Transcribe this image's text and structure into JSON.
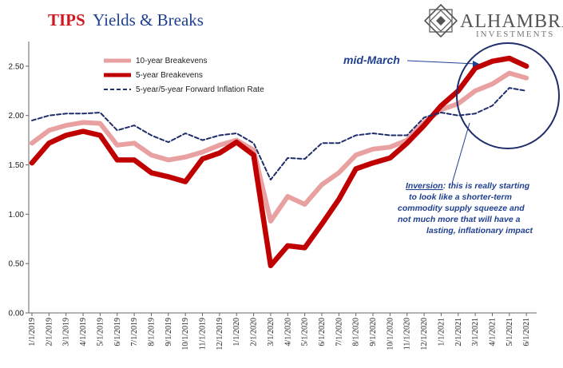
{
  "title": {
    "tips": "TIPS",
    "rest": "Yields & Breaks"
  },
  "logo": {
    "main": "ALHAMBRA",
    "sub": "INVESTMENTS"
  },
  "chart_data": {
    "type": "line",
    "title": "TIPS Yields & Breaks",
    "ylim": [
      0,
      2.75
    ],
    "yticks": [
      "0.00",
      "0.50",
      "1.00",
      "1.50",
      "2.00",
      "2.50"
    ],
    "ytick_values": [
      0,
      0.5,
      1.0,
      1.5,
      2.0,
      2.5
    ],
    "grid": false,
    "legend_position": "top-left",
    "x_tick_labels": [
      "1/1/2019",
      "2/1/2019",
      "3/1/2019",
      "4/1/2019",
      "5/1/2019",
      "6/1/2019",
      "7/1/2019",
      "8/1/2019",
      "9/1/2019",
      "10/1/2019",
      "11/1/2019",
      "12/1/2019",
      "1/1/2020",
      "2/1/2020",
      "3/1/2020",
      "4/1/2020",
      "5/1/2020",
      "6/1/2020",
      "7/1/2020",
      "8/1/2020",
      "9/1/2020",
      "10/1/2020",
      "11/1/2020",
      "12/1/2020",
      "1/1/2021",
      "2/1/2021",
      "3/1/2021",
      "4/1/2021",
      "5/1/2021",
      "6/1/2021"
    ],
    "x": [
      "2019-01",
      "2019-02",
      "2019-03",
      "2019-04",
      "2019-05",
      "2019-06",
      "2019-07",
      "2019-08",
      "2019-09",
      "2019-10",
      "2019-11",
      "2019-12",
      "2020-01",
      "2020-02",
      "2020-03",
      "2020-04",
      "2020-05",
      "2020-06",
      "2020-07",
      "2020-08",
      "2020-09",
      "2020-10",
      "2020-11",
      "2020-12",
      "2021-01",
      "2021-02",
      "2021-03",
      "2021-04",
      "2021-05",
      "2021-06"
    ],
    "series": [
      {
        "name": "10-year Breakevens",
        "color": "#e8a0a0",
        "style": "solid-thick",
        "values": [
          1.72,
          1.85,
          1.9,
          1.93,
          1.92,
          1.7,
          1.72,
          1.6,
          1.55,
          1.58,
          1.63,
          1.7,
          1.75,
          1.65,
          0.93,
          1.18,
          1.1,
          1.3,
          1.42,
          1.6,
          1.66,
          1.68,
          1.75,
          1.93,
          2.06,
          2.12,
          2.25,
          2.32,
          2.43,
          2.38
        ]
      },
      {
        "name": "5-year Breakevens",
        "color": "#c00000",
        "style": "solid-thicker",
        "values": [
          1.52,
          1.72,
          1.8,
          1.84,
          1.8,
          1.55,
          1.55,
          1.42,
          1.38,
          1.33,
          1.56,
          1.62,
          1.73,
          1.6,
          0.48,
          0.68,
          0.66,
          0.9,
          1.15,
          1.46,
          1.52,
          1.57,
          1.72,
          1.9,
          2.1,
          2.25,
          2.48,
          2.55,
          2.58,
          2.5
        ]
      },
      {
        "name": "5-year/5-year Forward Inflation Rate",
        "color": "#1f2d6b",
        "style": "dashed",
        "values": [
          1.95,
          2.0,
          2.02,
          2.02,
          2.03,
          1.85,
          1.9,
          1.8,
          1.73,
          1.82,
          1.75,
          1.8,
          1.82,
          1.72,
          1.35,
          1.57,
          1.56,
          1.72,
          1.72,
          1.8,
          1.82,
          1.8,
          1.8,
          1.98,
          2.03,
          2.0,
          2.02,
          2.1,
          2.28,
          2.25
        ]
      }
    ],
    "annotations": {
      "mid_march": "mid-March",
      "inversion_label": "Inversion",
      "inversion_lines": [
        ": this is really starting",
        "to look like a shorter-term",
        "commodity supply squeeze and",
        "not much more that will have a",
        "lasting, inflationary impact"
      ]
    }
  }
}
